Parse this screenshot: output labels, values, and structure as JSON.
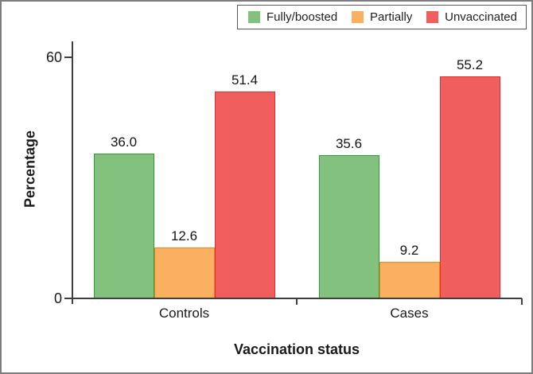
{
  "figure": {
    "background": "#ffffff",
    "frame_border_color": "#7d7d7d",
    "axis_color": "#3f3f3f"
  },
  "legend": {
    "position": "top-right",
    "border_color": "#595959",
    "items": [
      {
        "label": "Fully/boosted",
        "color": "#82c27e"
      },
      {
        "label": "Partially",
        "color": "#fbb061"
      },
      {
        "label": "Unvaccinated",
        "color": "#f15e5e"
      }
    ]
  },
  "chart_data": {
    "type": "bar",
    "title": "",
    "xlabel": "Vaccination status",
    "ylabel": "Percentage",
    "categories": [
      "Controls",
      "Cases"
    ],
    "series": [
      {
        "name": "Fully/boosted",
        "values": [
          36.0,
          35.6
        ],
        "fill": "#82c27e",
        "border": "#2f9e33"
      },
      {
        "name": "Partially",
        "values": [
          12.6,
          9.2
        ],
        "fill": "#fbb061",
        "border": "#f5821e"
      },
      {
        "name": "Unvaccinated",
        "values": [
          51.4,
          55.2
        ],
        "fill": "#f15e5e",
        "border": "#ea2b2b"
      }
    ],
    "ylim": [
      0,
      64
    ],
    "yticks": [
      0,
      60
    ],
    "grid": false,
    "legend_position": "top-right",
    "data_labels": true,
    "label_decimals": 1
  }
}
